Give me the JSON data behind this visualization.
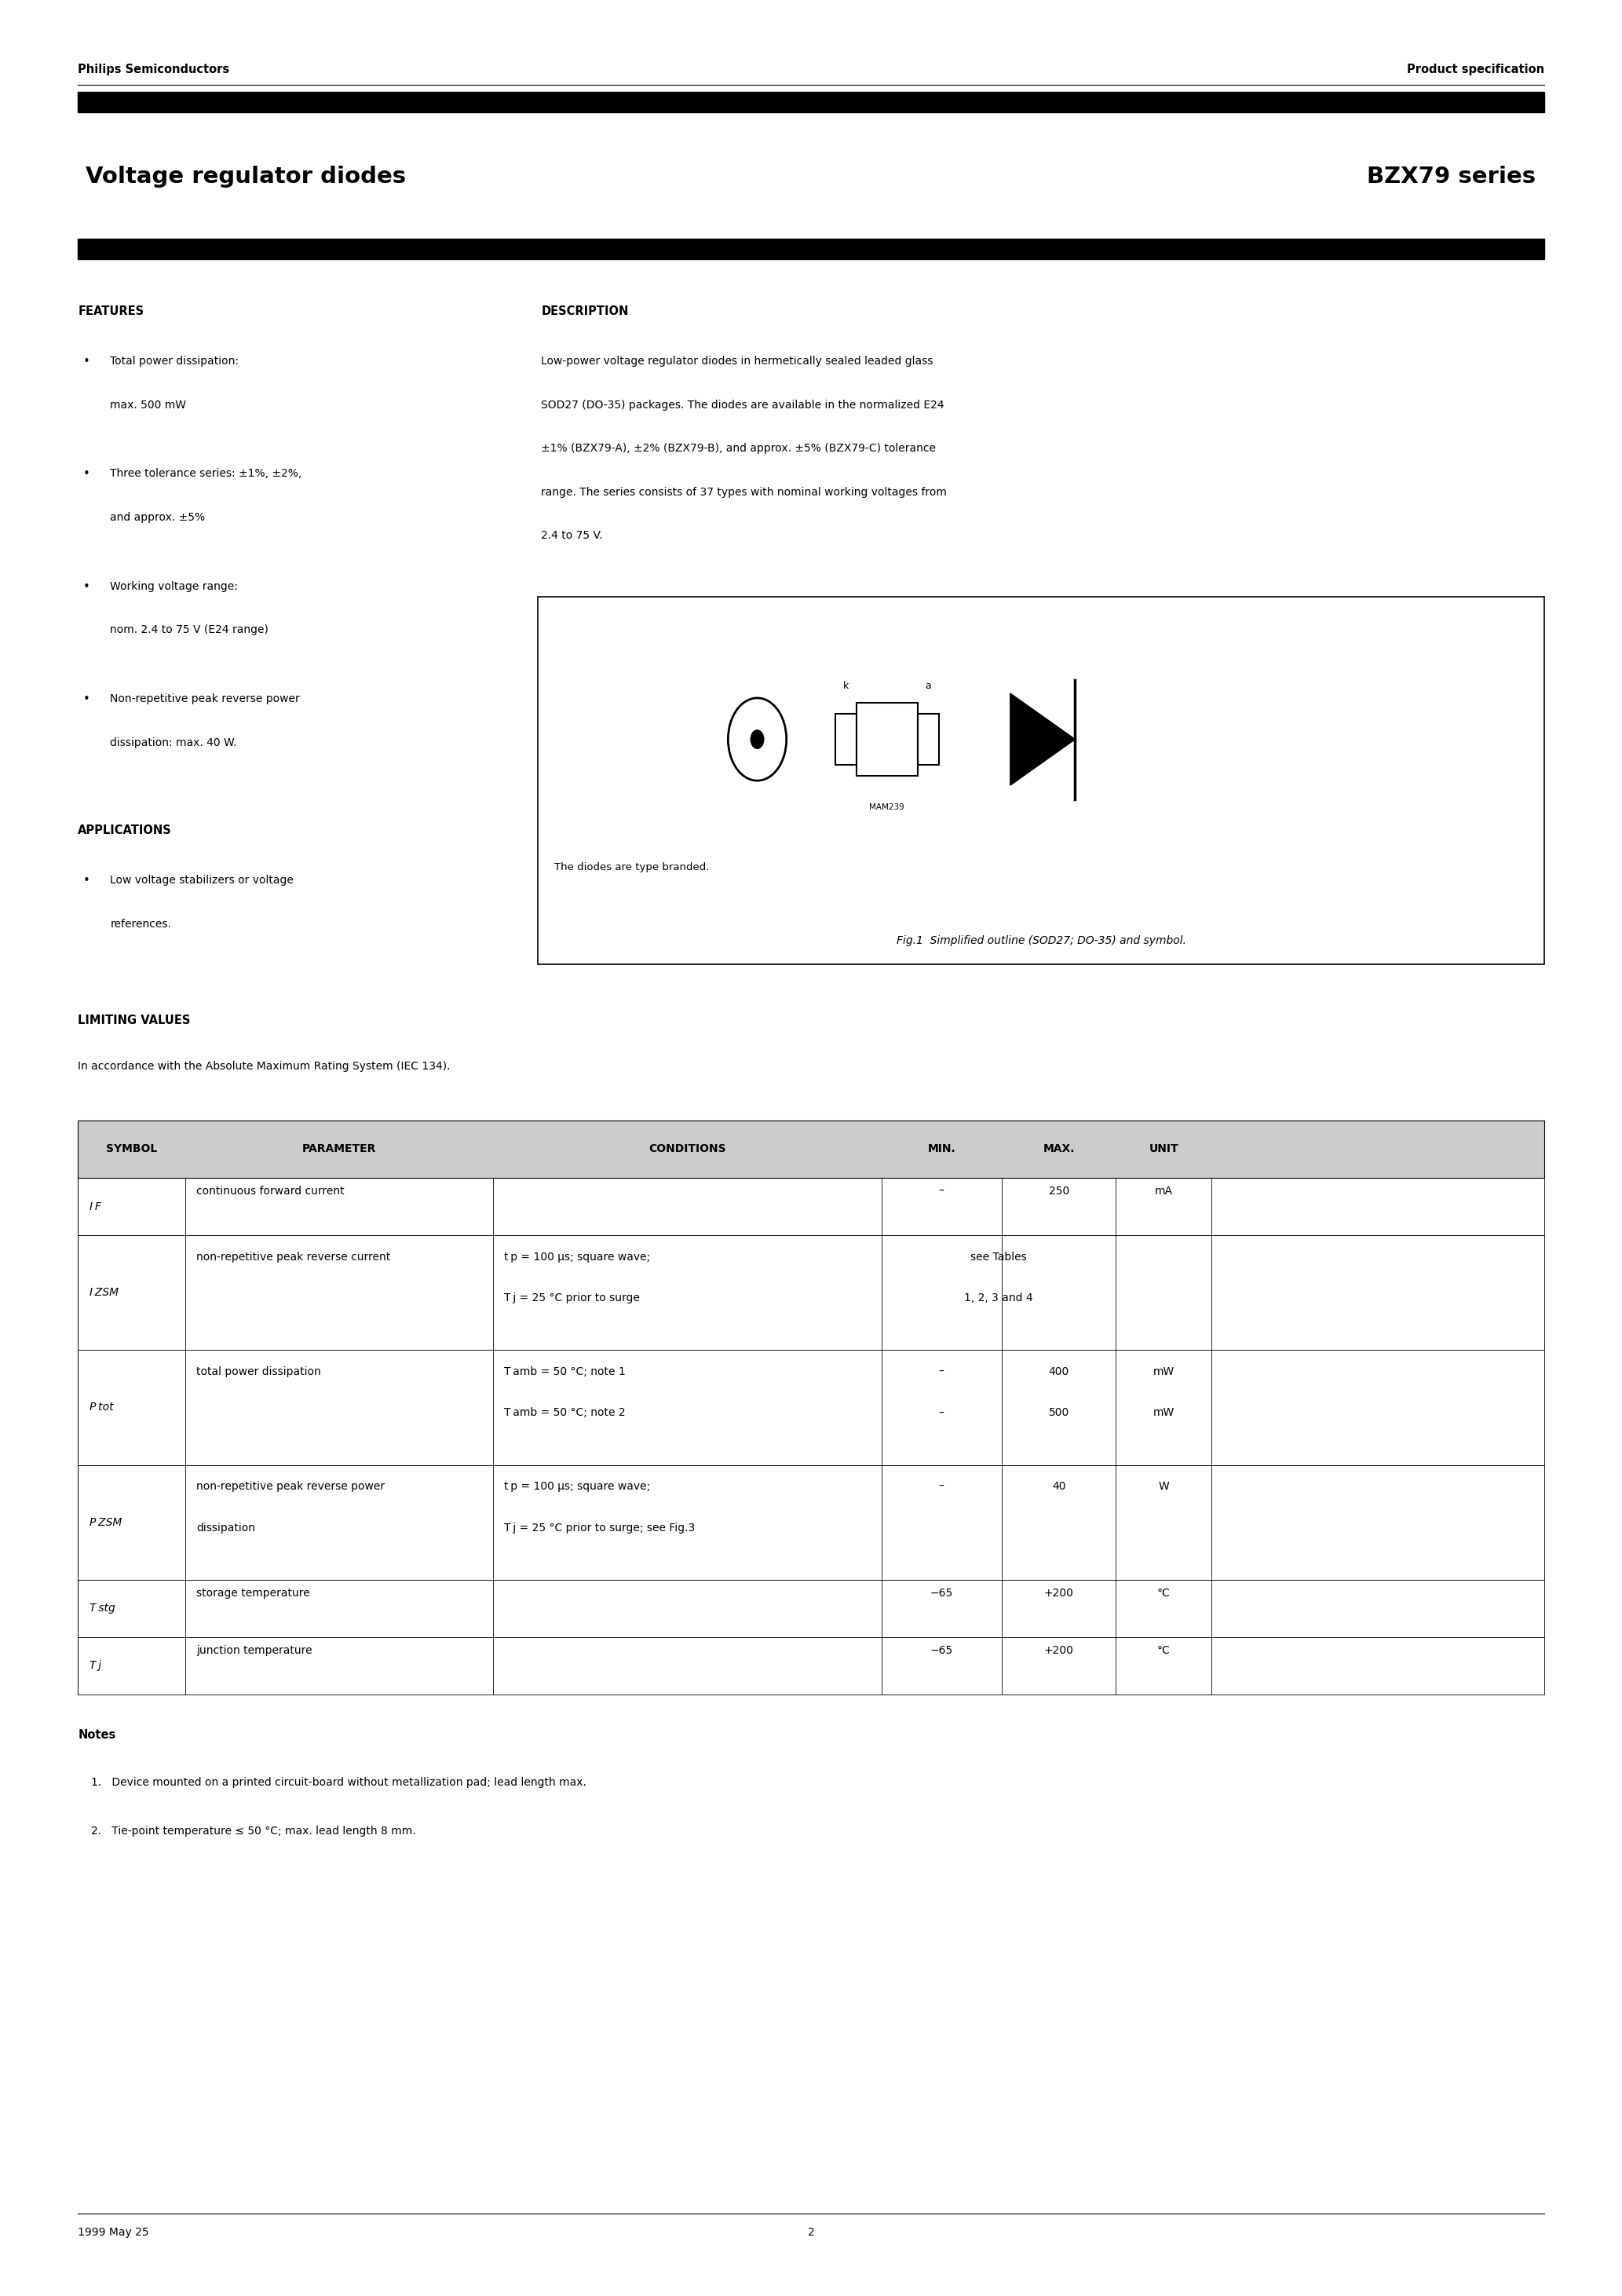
{
  "page_bg": "#ffffff",
  "header_left": "Philips Semiconductors",
  "header_right": "Product specification",
  "title_left": "Voltage regulator diodes",
  "title_right": "BZX79 series",
  "features_title": "FEATURES",
  "features_items": [
    [
      "Total power dissipation:",
      "max. 500 mW"
    ],
    [
      "Three tolerance series: ±1%, ±2%,",
      "and approx. ±5%"
    ],
    [
      "Working voltage range:",
      "nom. 2.4 to 75 V (E24 range)"
    ],
    [
      "Non-repetitive peak reverse power",
      "dissipation: max. 40 W."
    ]
  ],
  "applications_title": "APPLICATIONS",
  "applications_items": [
    [
      "Low voltage stabilizers or voltage",
      "references."
    ]
  ],
  "description_title": "DESCRIPTION",
  "description_lines": [
    "Low-power voltage regulator diodes in hermetically sealed leaded glass",
    "SOD27 (DO-35) packages. The diodes are available in the normalized E24",
    "±1% (BZX79-A), ±2% (BZX79-B), and approx. ±5% (BZX79-C) tolerance",
    "range. The series consists of 37 types with nominal working voltages from",
    "2.4 to 75 V."
  ],
  "fig_caption1": "The diodes are type branded.",
  "fig_caption2": "Fig.1  Simplified outline (SOD27; DO-35) and symbol.",
  "lv_title": "LIMITING VALUES",
  "lv_subtitle": "In accordance with the Absolute Maximum Rating System (IEC 134).",
  "table_headers": [
    "SYMBOL",
    "PARAMETER",
    "CONDITIONS",
    "MIN.",
    "MAX.",
    "UNIT"
  ],
  "table_rows": [
    {
      "symbol": "IF",
      "parameter": [
        "continuous forward current"
      ],
      "conditions": [
        ""
      ],
      "min": [
        "–"
      ],
      "max": [
        "250"
      ],
      "unit": [
        "mA"
      ],
      "span_min_max": false
    },
    {
      "symbol": "IZSM",
      "parameter": [
        "non-repetitive peak reverse current"
      ],
      "conditions": [
        "t p = 100 μs; square wave;",
        "T j = 25 °C prior to surge"
      ],
      "min": [
        "see Tables",
        "1, 2, 3 and 4"
      ],
      "max": [
        ""
      ],
      "unit": [
        ""
      ],
      "span_min_max": true
    },
    {
      "symbol": "Ptot",
      "parameter": [
        "total power dissipation"
      ],
      "conditions": [
        "T amb = 50 °C; note 1",
        "T amb = 50 °C; note 2"
      ],
      "min": [
        "–",
        "–"
      ],
      "max": [
        "400",
        "500"
      ],
      "unit": [
        "mW",
        "mW"
      ],
      "span_min_max": false
    },
    {
      "symbol": "PZSM",
      "parameter": [
        "non-repetitive peak reverse power",
        "dissipation"
      ],
      "conditions": [
        "t p = 100 μs; square wave;",
        "T j = 25 °C prior to surge; see Fig.3"
      ],
      "min": [
        "–"
      ],
      "max": [
        "40"
      ],
      "unit": [
        "W"
      ],
      "span_min_max": false
    },
    {
      "symbol": "Tstg",
      "parameter": [
        "storage temperature"
      ],
      "conditions": [
        ""
      ],
      "min": [
        "−65"
      ],
      "max": [
        "+200"
      ],
      "unit": [
        "°C"
      ],
      "span_min_max": false
    },
    {
      "symbol": "Tj",
      "parameter": [
        "junction temperature"
      ],
      "conditions": [
        ""
      ],
      "min": [
        "−65"
      ],
      "max": [
        "+200"
      ],
      "unit": [
        "°C"
      ],
      "span_min_max": false
    }
  ],
  "symbol_display": {
    "IF": "I F",
    "IZSM": "I ZSM",
    "Ptot": "P tot",
    "PZSM": "P ZSM",
    "Tstg": "T stg",
    "Tj": "T j"
  },
  "notes_title": "Notes",
  "notes": [
    "1.   Device mounted on a printed circuit-board without metallization pad; lead length max.",
    "2.   Tie-point temperature ≤ 50 °C; max. lead length 8 mm."
  ],
  "footer_left": "1999 May 25",
  "footer_center": "2"
}
